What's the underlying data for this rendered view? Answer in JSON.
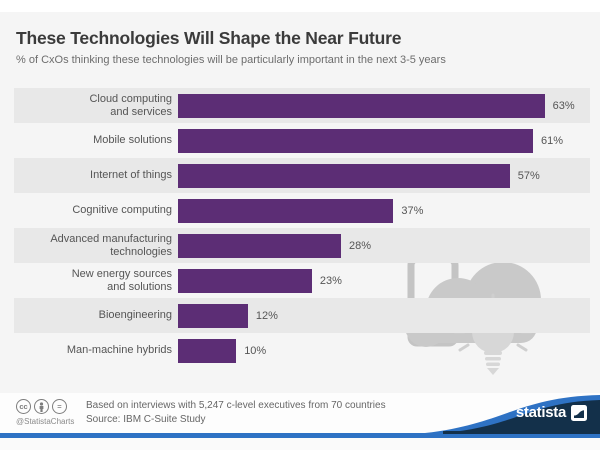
{
  "header": {
    "title": "These Technologies Will Shape the Near Future",
    "subtitle": "% of CxOs thinking these technologies will be particularly important in the next 3-5 years"
  },
  "chart_data": {
    "type": "bar",
    "orientation": "horizontal",
    "title": "These Technologies Will Shape the Near Future",
    "subtitle": "% of CxOs thinking these technologies will be particularly important in the next 3-5 years",
    "categories": [
      "Cloud computing\nand services",
      "Mobile solutions",
      "Internet of things",
      "Cognitive computing",
      "Advanced manufacturing\ntechnologies",
      "New energy sources\nand solutions",
      "Bioengineering",
      "Man-machine hybrids"
    ],
    "values": [
      63,
      61,
      57,
      37,
      28,
      23,
      12,
      10
    ],
    "value_suffix": "%",
    "xlim": [
      0,
      70
    ],
    "grid": false,
    "legend": false,
    "bar_color": "#5c2d75",
    "stripe_color": "#e8e8e8",
    "background_color": "#f5f5f5"
  },
  "footer": {
    "license_handle": "@StatistaCharts",
    "cc_labels": {
      "cc": "cc",
      "by": "by",
      "nd": "="
    },
    "note_line1": "Based on interviews with 5,247 c-level executives from 70 countries",
    "note_line2": "Source: IBM C-Suite Study",
    "brand": "statista"
  },
  "colors": {
    "accent_purple": "#5c2d75",
    "brand_navy": "#13304a",
    "brand_blue": "#2e72c4",
    "watermark_gray": "#c9c9c9",
    "title_gray": "#3b3b3b",
    "text_gray": "#555555"
  }
}
